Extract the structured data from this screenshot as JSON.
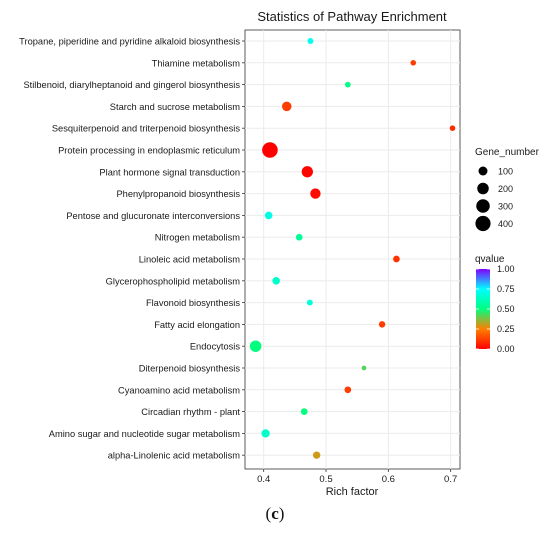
{
  "chart_data": {
    "type": "scatter",
    "title": "Statistics of Pathway Enrichment",
    "xlabel": "Rich factor",
    "ylabel": "",
    "xlim": [
      0.37,
      0.715
    ],
    "xticks": [
      "0.4",
      "0.5",
      "0.6",
      "0.7"
    ],
    "xtick_values": [
      0.4,
      0.5,
      0.6,
      0.7
    ],
    "grid": true,
    "legend_placement": "right",
    "pathways": [
      "Tropane, piperidine and pyridine alkaloid biosynthesis",
      "Thiamine metabolism",
      "Stilbenoid, diarylheptanoid and gingerol biosynthesis",
      "Starch and sucrose metabolism",
      "Sesquiterpenoid and triterpenoid biosynthesis",
      "Protein processing in endoplasmic reticulum",
      "Plant hormone signal transduction",
      "Phenylpropanoid biosynthesis",
      "Pentose and glucuronate interconversions",
      "Nitrogen metabolism",
      "Linoleic acid metabolism",
      "Glycerophospholipid metabolism",
      "Flavonoid biosynthesis",
      "Fatty acid elongation",
      "Endocytosis",
      "Diterpenoid biosynthesis",
      "Cyanoamino acid metabolism",
      "Circadian rhythm - plant",
      "Amino sugar and nucleotide sugar metabolism",
      "alpha-Linolenic acid metabolism"
    ],
    "points": [
      {
        "pathway": "Tropane, piperidine and pyridine alkaloid biosynthesis",
        "rich_factor": 0.475,
        "gene_number": 25,
        "qvalue": 0.72
      },
      {
        "pathway": "Thiamine metabolism",
        "rich_factor": 0.64,
        "gene_number": 20,
        "qvalue": 0.12
      },
      {
        "pathway": "Stilbenoid, diarylheptanoid and gingerol biosynthesis",
        "rich_factor": 0.535,
        "gene_number": 22,
        "qvalue": 0.52
      },
      {
        "pathway": "Starch and sucrose metabolism",
        "rich_factor": 0.437,
        "gene_number": 120,
        "qvalue": 0.12
      },
      {
        "pathway": "Sesquiterpenoid and triterpenoid biosynthesis",
        "rich_factor": 0.703,
        "gene_number": 20,
        "qvalue": 0.08
      },
      {
        "pathway": "Protein processing in endoplasmic reticulum",
        "rich_factor": 0.41,
        "gene_number": 430,
        "qvalue": 0.0
      },
      {
        "pathway": "Plant hormone signal transduction",
        "rich_factor": 0.47,
        "gene_number": 190,
        "qvalue": 0.01
      },
      {
        "pathway": "Phenylpropanoid biosynthesis",
        "rich_factor": 0.483,
        "gene_number": 150,
        "qvalue": 0.02
      },
      {
        "pathway": "Pentose and glucuronate interconversions",
        "rich_factor": 0.408,
        "gene_number": 60,
        "qvalue": 0.7
      },
      {
        "pathway": "Nitrogen metabolism",
        "rich_factor": 0.457,
        "gene_number": 40,
        "qvalue": 0.55
      },
      {
        "pathway": "Linoleic acid metabolism",
        "rich_factor": 0.613,
        "gene_number": 40,
        "qvalue": 0.1
      },
      {
        "pathway": "Glycerophospholipid metabolism",
        "rich_factor": 0.42,
        "gene_number": 60,
        "qvalue": 0.65
      },
      {
        "pathway": "Flavonoid biosynthesis",
        "rich_factor": 0.474,
        "gene_number": 25,
        "qvalue": 0.68
      },
      {
        "pathway": "Fatty acid elongation",
        "rich_factor": 0.59,
        "gene_number": 35,
        "qvalue": 0.12
      },
      {
        "pathway": "Endocytosis",
        "rich_factor": 0.387,
        "gene_number": 200,
        "qvalue": 0.5
      },
      {
        "pathway": "Diterpenoid biosynthesis",
        "rich_factor": 0.561,
        "gene_number": 10,
        "qvalue": 0.42
      },
      {
        "pathway": "Cyanoamino acid metabolism",
        "rich_factor": 0.535,
        "gene_number": 40,
        "qvalue": 0.12
      },
      {
        "pathway": "Circadian rhythm - plant",
        "rich_factor": 0.465,
        "gene_number": 40,
        "qvalue": 0.5
      },
      {
        "pathway": "Amino sugar and nucleotide sugar metabolism",
        "rich_factor": 0.403,
        "gene_number": 80,
        "qvalue": 0.65
      },
      {
        "pathway": "alpha-Linolenic acid metabolism",
        "rich_factor": 0.485,
        "gene_number": 55,
        "qvalue": 0.3
      }
    ],
    "size_legend": {
      "title": "Gene_number",
      "values": [
        100,
        200,
        300,
        400
      ]
    },
    "color_legend": {
      "title": "qvalue",
      "ticks": [
        "1.00",
        "0.75",
        "0.50",
        "0.25",
        "0.00"
      ],
      "tick_values": [
        1.0,
        0.75,
        0.5,
        0.25,
        0.0
      ]
    },
    "colors": {
      "panel_bg": "#ffffff",
      "panel_border": "#333333",
      "gridline": "#ebebeb",
      "qvalue_scale": [
        "#ff0000",
        "#ff7f00",
        "#00ff7f",
        "#00ffff",
        "#8000ff"
      ]
    }
  },
  "panel_label": {
    "open": "(",
    "letter": "c",
    "close": ")"
  }
}
